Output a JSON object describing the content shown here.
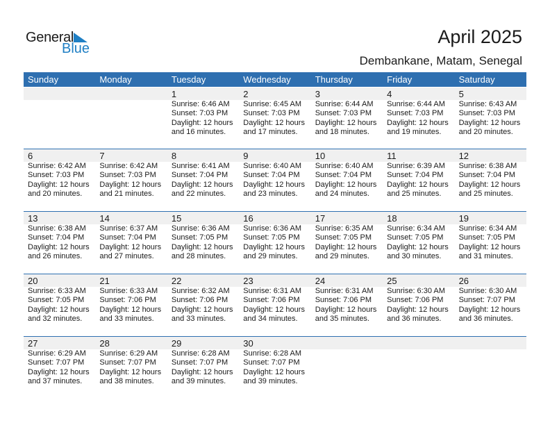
{
  "logo": {
    "line1": "General",
    "line2": "Blue"
  },
  "title": "April 2025",
  "location": "Dembankane, Matam, Senegal",
  "accent": "#2e6fb0",
  "weekdays": [
    "Sunday",
    "Monday",
    "Tuesday",
    "Wednesday",
    "Thursday",
    "Friday",
    "Saturday"
  ],
  "weeks": [
    [
      null,
      null,
      {
        "day": "1",
        "sunrise": "Sunrise: 6:46 AM",
        "sunset": "Sunset: 7:03 PM",
        "daylight": "Daylight: 12 hours",
        "minutes": "and 16 minutes."
      },
      {
        "day": "2",
        "sunrise": "Sunrise: 6:45 AM",
        "sunset": "Sunset: 7:03 PM",
        "daylight": "Daylight: 12 hours",
        "minutes": "and 17 minutes."
      },
      {
        "day": "3",
        "sunrise": "Sunrise: 6:44 AM",
        "sunset": "Sunset: 7:03 PM",
        "daylight": "Daylight: 12 hours",
        "minutes": "and 18 minutes."
      },
      {
        "day": "4",
        "sunrise": "Sunrise: 6:44 AM",
        "sunset": "Sunset: 7:03 PM",
        "daylight": "Daylight: 12 hours",
        "minutes": "and 19 minutes."
      },
      {
        "day": "5",
        "sunrise": "Sunrise: 6:43 AM",
        "sunset": "Sunset: 7:03 PM",
        "daylight": "Daylight: 12 hours",
        "minutes": "and 20 minutes."
      }
    ],
    [
      {
        "day": "6",
        "sunrise": "Sunrise: 6:42 AM",
        "sunset": "Sunset: 7:03 PM",
        "daylight": "Daylight: 12 hours",
        "minutes": "and 20 minutes."
      },
      {
        "day": "7",
        "sunrise": "Sunrise: 6:42 AM",
        "sunset": "Sunset: 7:03 PM",
        "daylight": "Daylight: 12 hours",
        "minutes": "and 21 minutes."
      },
      {
        "day": "8",
        "sunrise": "Sunrise: 6:41 AM",
        "sunset": "Sunset: 7:04 PM",
        "daylight": "Daylight: 12 hours",
        "minutes": "and 22 minutes."
      },
      {
        "day": "9",
        "sunrise": "Sunrise: 6:40 AM",
        "sunset": "Sunset: 7:04 PM",
        "daylight": "Daylight: 12 hours",
        "minutes": "and 23 minutes."
      },
      {
        "day": "10",
        "sunrise": "Sunrise: 6:40 AM",
        "sunset": "Sunset: 7:04 PM",
        "daylight": "Daylight: 12 hours",
        "minutes": "and 24 minutes."
      },
      {
        "day": "11",
        "sunrise": "Sunrise: 6:39 AM",
        "sunset": "Sunset: 7:04 PM",
        "daylight": "Daylight: 12 hours",
        "minutes": "and 25 minutes."
      },
      {
        "day": "12",
        "sunrise": "Sunrise: 6:38 AM",
        "sunset": "Sunset: 7:04 PM",
        "daylight": "Daylight: 12 hours",
        "minutes": "and 25 minutes."
      }
    ],
    [
      {
        "day": "13",
        "sunrise": "Sunrise: 6:38 AM",
        "sunset": "Sunset: 7:04 PM",
        "daylight": "Daylight: 12 hours",
        "minutes": "and 26 minutes."
      },
      {
        "day": "14",
        "sunrise": "Sunrise: 6:37 AM",
        "sunset": "Sunset: 7:04 PM",
        "daylight": "Daylight: 12 hours",
        "minutes": "and 27 minutes."
      },
      {
        "day": "15",
        "sunrise": "Sunrise: 6:36 AM",
        "sunset": "Sunset: 7:05 PM",
        "daylight": "Daylight: 12 hours",
        "minutes": "and 28 minutes."
      },
      {
        "day": "16",
        "sunrise": "Sunrise: 6:36 AM",
        "sunset": "Sunset: 7:05 PM",
        "daylight": "Daylight: 12 hours",
        "minutes": "and 29 minutes."
      },
      {
        "day": "17",
        "sunrise": "Sunrise: 6:35 AM",
        "sunset": "Sunset: 7:05 PM",
        "daylight": "Daylight: 12 hours",
        "minutes": "and 29 minutes."
      },
      {
        "day": "18",
        "sunrise": "Sunrise: 6:34 AM",
        "sunset": "Sunset: 7:05 PM",
        "daylight": "Daylight: 12 hours",
        "minutes": "and 30 minutes."
      },
      {
        "day": "19",
        "sunrise": "Sunrise: 6:34 AM",
        "sunset": "Sunset: 7:05 PM",
        "daylight": "Daylight: 12 hours",
        "minutes": "and 31 minutes."
      }
    ],
    [
      {
        "day": "20",
        "sunrise": "Sunrise: 6:33 AM",
        "sunset": "Sunset: 7:05 PM",
        "daylight": "Daylight: 12 hours",
        "minutes": "and 32 minutes."
      },
      {
        "day": "21",
        "sunrise": "Sunrise: 6:33 AM",
        "sunset": "Sunset: 7:06 PM",
        "daylight": "Daylight: 12 hours",
        "minutes": "and 33 minutes."
      },
      {
        "day": "22",
        "sunrise": "Sunrise: 6:32 AM",
        "sunset": "Sunset: 7:06 PM",
        "daylight": "Daylight: 12 hours",
        "minutes": "and 33 minutes."
      },
      {
        "day": "23",
        "sunrise": "Sunrise: 6:31 AM",
        "sunset": "Sunset: 7:06 PM",
        "daylight": "Daylight: 12 hours",
        "minutes": "and 34 minutes."
      },
      {
        "day": "24",
        "sunrise": "Sunrise: 6:31 AM",
        "sunset": "Sunset: 7:06 PM",
        "daylight": "Daylight: 12 hours",
        "minutes": "and 35 minutes."
      },
      {
        "day": "25",
        "sunrise": "Sunrise: 6:30 AM",
        "sunset": "Sunset: 7:06 PM",
        "daylight": "Daylight: 12 hours",
        "minutes": "and 36 minutes."
      },
      {
        "day": "26",
        "sunrise": "Sunrise: 6:30 AM",
        "sunset": "Sunset: 7:07 PM",
        "daylight": "Daylight: 12 hours",
        "minutes": "and 36 minutes."
      }
    ],
    [
      {
        "day": "27",
        "sunrise": "Sunrise: 6:29 AM",
        "sunset": "Sunset: 7:07 PM",
        "daylight": "Daylight: 12 hours",
        "minutes": "and 37 minutes."
      },
      {
        "day": "28",
        "sunrise": "Sunrise: 6:29 AM",
        "sunset": "Sunset: 7:07 PM",
        "daylight": "Daylight: 12 hours",
        "minutes": "and 38 minutes."
      },
      {
        "day": "29",
        "sunrise": "Sunrise: 6:28 AM",
        "sunset": "Sunset: 7:07 PM",
        "daylight": "Daylight: 12 hours",
        "minutes": "and 39 minutes."
      },
      {
        "day": "30",
        "sunrise": "Sunrise: 6:28 AM",
        "sunset": "Sunset: 7:07 PM",
        "daylight": "Daylight: 12 hours",
        "minutes": "and 39 minutes."
      },
      null,
      null,
      null
    ]
  ]
}
